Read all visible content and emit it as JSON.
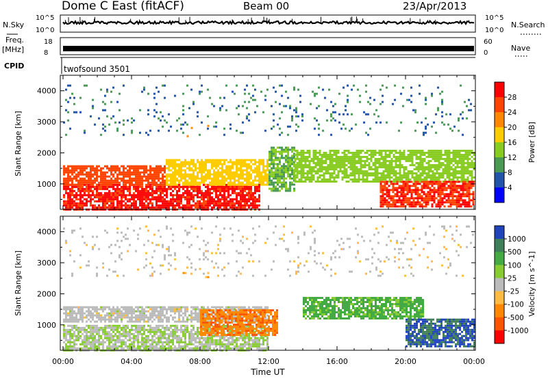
{
  "header": {
    "station": "Dome C East (fitACF)",
    "beam": "Beam 00",
    "date": "23/Apr/2013"
  },
  "noise_panel": {
    "left_label": "N.Sky",
    "right_label": "N.Search",
    "left_ticks": [
      "10^5",
      "10^0"
    ],
    "right_ticks": [
      "10^5",
      "10^0"
    ]
  },
  "freq_panel": {
    "left_label_1": "Freq.",
    "left_label_2": "[MHz]",
    "right_label": "Nave",
    "left_ticks": [
      "18",
      "8"
    ],
    "right_ticks": [
      "60",
      "0"
    ]
  },
  "cpid": {
    "label": "CPID",
    "program": "twofsound 3501"
  },
  "axes": {
    "ylabel": "Slant Range [km]",
    "xlabel": "Time UT",
    "y_ticks": [
      "4000",
      "3000",
      "2000",
      "1000"
    ],
    "x_ticks": [
      "00:00",
      "04:00",
      "08:00",
      "12:00",
      "16:00",
      "20:00",
      "00:00"
    ]
  },
  "power_scale": {
    "title": "Power [dB]",
    "labels": [
      "28",
      "24",
      "20",
      "16",
      "12",
      "8",
      "4"
    ],
    "colors": [
      "#ff0000",
      "#ff4400",
      "#ff8800",
      "#ffcc00",
      "#88cc22",
      "#4a9a55",
      "#2255aa",
      "#0000ff"
    ]
  },
  "velocity_scale": {
    "title": "Velocity [m s^-1]",
    "labels": [
      "1000",
      "500",
      "100",
      "25",
      "-25",
      "-100",
      "-500",
      "-1000"
    ],
    "colors": [
      "#2244bb",
      "#3f7f5a",
      "#44aa44",
      "#88cc33",
      "#bbbbbb",
      "#ffbb44",
      "#ff8800",
      "#ff5500",
      "#ff0000"
    ]
  },
  "chart_data": {
    "type": "heatmap",
    "title": "Dome C East (fitACF)",
    "xlabel": "Time UT",
    "ylabel": "Slant Range [km]",
    "x_range": [
      "00:00",
      "24:00"
    ],
    "ylim": [
      180,
      4500
    ],
    "panels": [
      {
        "name": "Power [dB]",
        "range": [
          0,
          32
        ],
        "regions": [
          {
            "t0": 0.0,
            "t1": 11.5,
            "r0": 200,
            "r1": 1000,
            "value": 29
          },
          {
            "t0": 0.0,
            "t1": 6.0,
            "r0": 1000,
            "r1": 1600,
            "value": 26
          },
          {
            "t0": 6.0,
            "t1": 12.0,
            "r0": 1000,
            "r1": 1800,
            "value": 18
          },
          {
            "t0": 6.5,
            "t1": 8.5,
            "r0": 2550,
            "r1": 2900,
            "value": 22
          },
          {
            "t0": 12.0,
            "t1": 13.5,
            "r0": 800,
            "r1": 2200,
            "value": 12
          },
          {
            "t0": 13.5,
            "t1": 24.0,
            "r0": 1100,
            "r1": 2100,
            "value": 14
          },
          {
            "t0": 18.5,
            "t1": 24.0,
            "r0": 300,
            "r1": 1100,
            "value": 28
          },
          {
            "t0": 0.0,
            "t1": 24.0,
            "r0": 2600,
            "r1": 4200,
            "value": 8
          }
        ]
      },
      {
        "name": "Velocity [m s^-1]",
        "range": [
          -1000,
          1000
        ],
        "regions": [
          {
            "t0": 0.0,
            "t1": 12.0,
            "r0": 200,
            "r1": 1000,
            "value": 100
          },
          {
            "t0": 0.0,
            "t1": 12.0,
            "r0": 1100,
            "r1": 1600,
            "value": 0
          },
          {
            "t0": 6.5,
            "t1": 8.5,
            "r0": 2500,
            "r1": 2900,
            "value": -250
          },
          {
            "t0": 8.0,
            "t1": 12.5,
            "r0": 700,
            "r1": 1500,
            "value": -500
          },
          {
            "t0": 14.0,
            "t1": 21.0,
            "r0": 1200,
            "r1": 1900,
            "value": 400
          },
          {
            "t0": 20.0,
            "t1": 24.0,
            "r0": 300,
            "r1": 1200,
            "value": 800
          },
          {
            "t0": 0.0,
            "t1": 24.0,
            "r0": 2600,
            "r1": 4200,
            "value": -50
          }
        ]
      }
    ]
  }
}
